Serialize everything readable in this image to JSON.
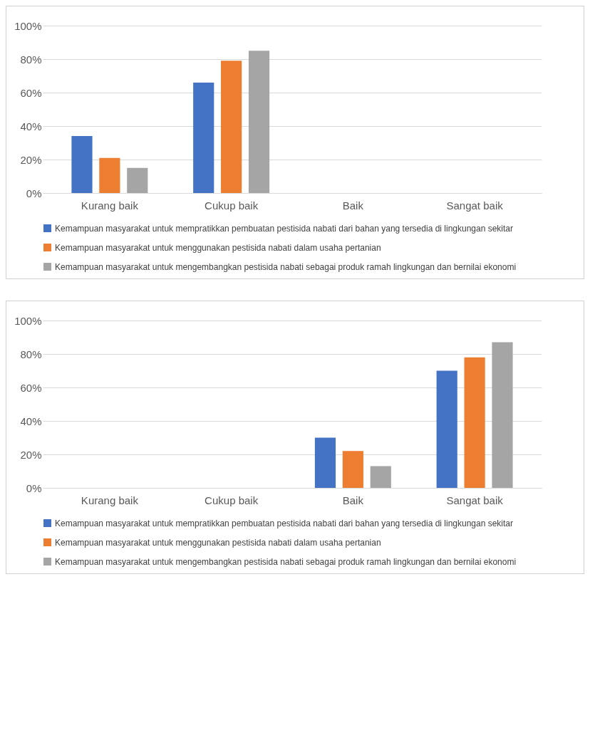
{
  "chart_data": [
    {
      "type": "bar",
      "categories": [
        "Kurang baik",
        "Cukup baik",
        "Baik",
        "Sangat baik"
      ],
      "series": [
        {
          "name": "Kemampuan masyarakat untuk mempratikkan pembuatan pestisida nabati dari bahan yang tersedia di lingkungan sekitar",
          "color": "#4472c4",
          "values": [
            34,
            66,
            null,
            null
          ]
        },
        {
          "name": "Kemampuan masyarakat untuk menggunakan pestisida nabati dalam usaha pertanian",
          "color": "#ed7d31",
          "values": [
            21,
            79,
            null,
            null
          ]
        },
        {
          "name": "Kemampuan masyarakat untuk mengembangkan pestisida nabati sebagai produk ramah lingkungan dan bernilai ekonomi",
          "color": "#a5a5a5",
          "values": [
            15,
            85,
            null,
            null
          ]
        }
      ],
      "ylim": [
        0,
        100
      ],
      "yticks": [
        {
          "value": 0,
          "label": "0%"
        },
        {
          "value": 20,
          "label": "20%"
        },
        {
          "value": 40,
          "label": "40%"
        },
        {
          "value": 60,
          "label": "60%"
        },
        {
          "value": 80,
          "label": "80%"
        },
        {
          "value": 100,
          "label": "100%"
        }
      ],
      "grid": "y",
      "legend": "bottom"
    },
    {
      "type": "bar",
      "categories": [
        "Kurang baik",
        "Cukup baik",
        "Baik",
        "Sangat baik"
      ],
      "series": [
        {
          "name": "Kemampuan masyarakat untuk mempratikkan pembuatan pestisida nabati dari bahan yang tersedia di lingkungan sekitar",
          "color": "#4472c4",
          "values": [
            null,
            null,
            30,
            70
          ]
        },
        {
          "name": "Kemampuan masyarakat untuk menggunakan pestisida nabati dalam usaha pertanian",
          "color": "#ed7d31",
          "values": [
            null,
            null,
            22,
            78
          ]
        },
        {
          "name": "Kemampuan masyarakat untuk mengembangkan pestisida nabati sebagai produk ramah lingkungan dan bernilai ekonomi",
          "color": "#a5a5a5",
          "values": [
            null,
            null,
            13,
            87
          ]
        }
      ],
      "ylim": [
        0,
        100
      ],
      "yticks": [
        {
          "value": 0,
          "label": "0%"
        },
        {
          "value": 20,
          "label": "20%"
        },
        {
          "value": 40,
          "label": "40%"
        },
        {
          "value": 60,
          "label": "60%"
        },
        {
          "value": 80,
          "label": "80%"
        },
        {
          "value": 100,
          "label": "100%"
        }
      ],
      "grid": "y",
      "legend": "bottom"
    }
  ]
}
